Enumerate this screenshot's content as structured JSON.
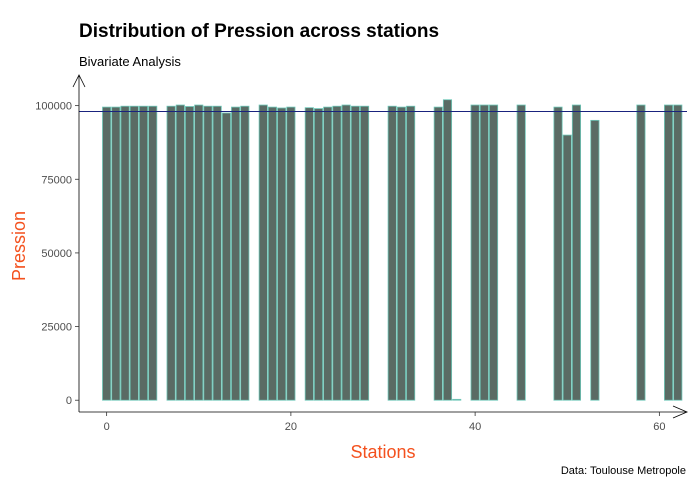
{
  "chart_data": {
    "type": "bar",
    "title": "Distribution of Pression across stations",
    "subtitle": "Bivariate Analysis",
    "xlabel": "Stations",
    "ylabel": "Pression",
    "caption": "Data: Toulouse Metropole",
    "xlim": [
      -3,
      63
    ],
    "ylim": [
      -4000,
      107000
    ],
    "x_ticks": [
      0,
      20,
      40,
      60
    ],
    "y_ticks": [
      0,
      25000,
      50000,
      75000,
      100000
    ],
    "y_tick_labels": [
      "0",
      "25000",
      "50000",
      "75000",
      "100000"
    ],
    "x_tick_labels": [
      "0",
      "20",
      "40",
      "60"
    ],
    "reference_line": 98000,
    "grid": false,
    "colors": {
      "bar_fill": "#5a6b64",
      "bar_outline": "#6fc7b8",
      "reference_line": "#1a237e",
      "axis_title": "#f4511e",
      "axis_line": "#000000"
    },
    "series": [
      {
        "x": [
          0,
          1,
          2,
          3,
          4,
          5,
          7,
          8,
          9,
          10,
          11,
          12,
          13,
          14,
          15,
          17,
          18,
          19,
          20,
          22,
          23,
          24,
          25,
          26,
          27,
          28,
          31,
          32,
          33,
          36,
          37,
          38,
          40,
          41,
          42,
          45,
          49,
          50,
          51,
          53,
          58,
          61,
          62
        ],
        "values": [
          99500,
          99500,
          99800,
          99800,
          99800,
          99800,
          99800,
          100200,
          99700,
          100200,
          99800,
          99800,
          97500,
          99500,
          99800,
          100200,
          99500,
          99200,
          99500,
          99300,
          99000,
          99500,
          99800,
          100200,
          99800,
          99800,
          99800,
          99500,
          99800,
          99500,
          102000,
          300,
          100200,
          100200,
          100200,
          100200,
          99500,
          90000,
          100200,
          95000,
          100200,
          100200,
          100200
        ]
      }
    ]
  }
}
